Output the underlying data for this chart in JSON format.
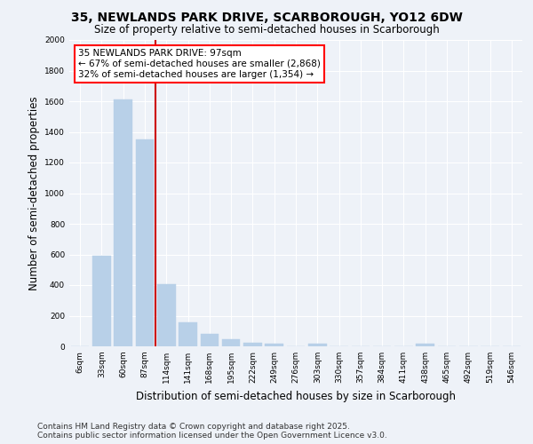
{
  "title": "35, NEWLANDS PARK DRIVE, SCARBOROUGH, YO12 6DW",
  "subtitle": "Size of property relative to semi-detached houses in Scarborough",
  "xlabel": "Distribution of semi-detached houses by size in Scarborough",
  "ylabel": "Number of semi-detached properties",
  "categories": [
    "6sqm",
    "33sqm",
    "60sqm",
    "87sqm",
    "114sqm",
    "141sqm",
    "168sqm",
    "195sqm",
    "222sqm",
    "249sqm",
    "276sqm",
    "303sqm",
    "330sqm",
    "357sqm",
    "384sqm",
    "411sqm",
    "438sqm",
    "465sqm",
    "492sqm",
    "519sqm",
    "546sqm"
  ],
  "values": [
    0,
    590,
    1610,
    1350,
    405,
    155,
    80,
    47,
    25,
    20,
    0,
    15,
    0,
    0,
    0,
    0,
    20,
    0,
    0,
    0,
    0
  ],
  "bar_color": "#b8d0e8",
  "bar_edge_color": "#b8d0e8",
  "property_line_x": 3.5,
  "property_label": "35 NEWLANDS PARK DRIVE: 97sqm",
  "smaller_text": "← 67% of semi-detached houses are smaller (2,868)",
  "larger_text": "32% of semi-detached houses are larger (1,354) →",
  "line_color": "#cc0000",
  "ylim": [
    0,
    2000
  ],
  "yticks": [
    0,
    200,
    400,
    600,
    800,
    1000,
    1200,
    1400,
    1600,
    1800,
    2000
  ],
  "footer1": "Contains HM Land Registry data © Crown copyright and database right 2025.",
  "footer2": "Contains public sector information licensed under the Open Government Licence v3.0.",
  "bg_color": "#eef2f8",
  "grid_color": "#ffffff",
  "title_fontsize": 10,
  "subtitle_fontsize": 8.5,
  "tick_fontsize": 6.5,
  "label_fontsize": 8.5,
  "footer_fontsize": 6.5,
  "annot_fontsize": 7.5
}
